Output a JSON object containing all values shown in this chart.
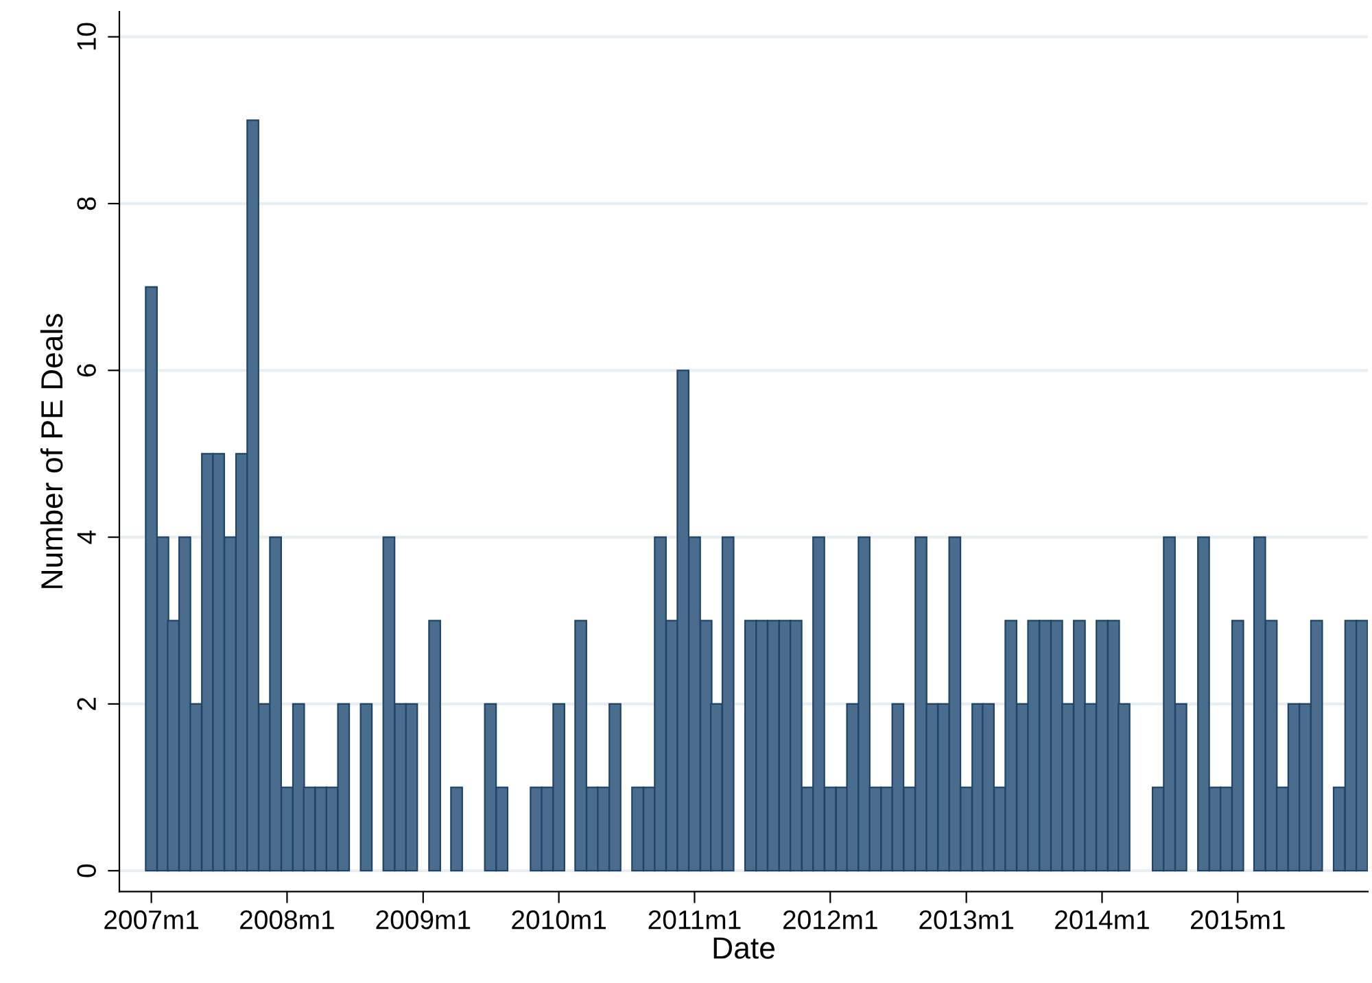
{
  "chart_data": {
    "type": "bar",
    "xlabel": "Date",
    "ylabel": "Number of PE Deals",
    "x": [
      "2007-01",
      "2007-02",
      "2007-03",
      "2007-04",
      "2007-05",
      "2007-06",
      "2007-07",
      "2007-08",
      "2007-09",
      "2007-10",
      "2007-11",
      "2007-12",
      "2008-01",
      "2008-02",
      "2008-03",
      "2008-04",
      "2008-05",
      "2008-06",
      "2008-07",
      "2008-08",
      "2008-09",
      "2008-10",
      "2008-11",
      "2008-12",
      "2009-01",
      "2009-02",
      "2009-03",
      "2009-04",
      "2009-05",
      "2009-06",
      "2009-07",
      "2009-08",
      "2009-09",
      "2009-10",
      "2009-11",
      "2009-12",
      "2010-01",
      "2010-02",
      "2010-03",
      "2010-04",
      "2010-05",
      "2010-06",
      "2010-07",
      "2010-08",
      "2010-09",
      "2010-10",
      "2010-11",
      "2010-12",
      "2011-01",
      "2011-02",
      "2011-03",
      "2011-04",
      "2011-05",
      "2011-06",
      "2011-07",
      "2011-08",
      "2011-09",
      "2011-10",
      "2011-11",
      "2011-12",
      "2012-01",
      "2012-02",
      "2012-03",
      "2012-04",
      "2012-05",
      "2012-06",
      "2012-07",
      "2012-08",
      "2012-09",
      "2012-10",
      "2012-11",
      "2012-12",
      "2013-01",
      "2013-02",
      "2013-03",
      "2013-04",
      "2013-05",
      "2013-06",
      "2013-07",
      "2013-08",
      "2013-09",
      "2013-10",
      "2013-11",
      "2013-12",
      "2014-01",
      "2014-02",
      "2014-03",
      "2014-04",
      "2014-05",
      "2014-06",
      "2014-07",
      "2014-08",
      "2014-09",
      "2014-10",
      "2014-11",
      "2014-12",
      "2015-01",
      "2015-02",
      "2015-03",
      "2015-04",
      "2015-05",
      "2015-06",
      "2015-07",
      "2015-08",
      "2015-09",
      "2015-10",
      "2015-11",
      "2015-12"
    ],
    "values": [
      7,
      4,
      3,
      4,
      2,
      5,
      5,
      4,
      5,
      9,
      2,
      4,
      1,
      2,
      1,
      1,
      1,
      2,
      0,
      2,
      0,
      4,
      2,
      2,
      0,
      3,
      0,
      1,
      0,
      0,
      2,
      1,
      0,
      0,
      1,
      1,
      2,
      0,
      3,
      1,
      1,
      2,
      0,
      1,
      1,
      4,
      3,
      6,
      4,
      3,
      2,
      4,
      0,
      3,
      3,
      3,
      3,
      3,
      1,
      4,
      1,
      1,
      2,
      4,
      1,
      1,
      2,
      1,
      4,
      2,
      2,
      4,
      1,
      2,
      2,
      1,
      3,
      2,
      3,
      3,
      3,
      2,
      3,
      2,
      3,
      3,
      2,
      0,
      0,
      1,
      4,
      2,
      0,
      4,
      1,
      1,
      3,
      0,
      4,
      3,
      1,
      2,
      2,
      3,
      0,
      1,
      3,
      3
    ],
    "color": "#4a6d8d",
    "xlim": [
      "2006-10-22",
      "2016-01-01"
    ],
    "xticks": [
      {
        "value": "2007-01",
        "label": "2007m1"
      },
      {
        "value": "2008-01",
        "label": "2008m1"
      },
      {
        "value": "2009-01",
        "label": "2009m1"
      },
      {
        "value": "2010-01",
        "label": "2010m1"
      },
      {
        "value": "2011-01",
        "label": "2011m1"
      },
      {
        "value": "2012-01",
        "label": "2012m1"
      },
      {
        "value": "2013-01",
        "label": "2013m1"
      },
      {
        "value": "2014-01",
        "label": "2014m1"
      },
      {
        "value": "2015-01",
        "label": "2015m1"
      }
    ],
    "ylim": [
      -0.25,
      10.3
    ],
    "yticks": [
      0,
      2,
      4,
      6,
      8,
      10
    ],
    "grid": "y",
    "legend": false
  }
}
